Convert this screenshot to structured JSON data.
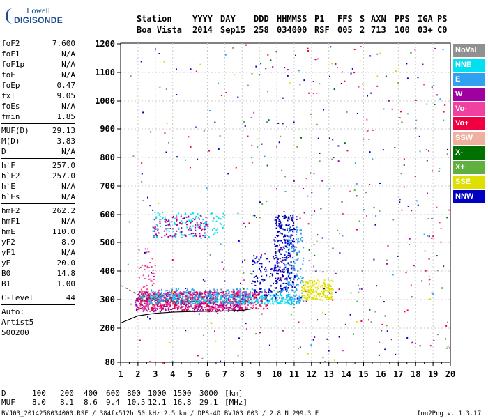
{
  "logo": {
    "line1": "Lowell",
    "line2": "DIGISONDE"
  },
  "header": {
    "labels": [
      "Station",
      "YYYY",
      "DAY",
      "DDD",
      "HHMMSS",
      "P1",
      "FFS",
      "S",
      "AXN",
      "PPS",
      "IGA",
      "PS"
    ],
    "values": [
      "Boa Vista",
      "2014",
      "Sep15",
      "258",
      "034000",
      "RSF",
      "005",
      "2",
      "713",
      "100",
      "03+",
      "C0"
    ]
  },
  "params": [
    [
      {
        "k": "foF2",
        "v": "7.600"
      },
      {
        "k": "foF1",
        "v": "N/A"
      },
      {
        "k": "foF1p",
        "v": "N/A"
      },
      {
        "k": "foE",
        "v": "N/A"
      },
      {
        "k": "foEp",
        "v": "0.47"
      },
      {
        "k": "fxI",
        "v": "9.05"
      },
      {
        "k": "foEs",
        "v": "N/A"
      },
      {
        "k": "fmin",
        "v": "1.85"
      }
    ],
    [
      {
        "k": "MUF(D)",
        "v": "29.13"
      },
      {
        "k": "M(D)",
        "v": "3.83"
      },
      {
        "k": "D",
        "v": "N/A"
      }
    ],
    [
      {
        "k": "h`F",
        "v": "257.0"
      },
      {
        "k": "h`F2",
        "v": "257.0"
      },
      {
        "k": "h`E",
        "v": "N/A"
      },
      {
        "k": "h`Es",
        "v": "N/A"
      }
    ],
    [
      {
        "k": "hmF2",
        "v": "262.2"
      },
      {
        "k": "hmF1",
        "v": "N/A"
      },
      {
        "k": "hmE",
        "v": "110.0"
      },
      {
        "k": "yF2",
        "v": "8.9"
      },
      {
        "k": "yF1",
        "v": "N/A"
      },
      {
        "k": "yE",
        "v": "20.0"
      },
      {
        "k": "B0",
        "v": "14.8"
      },
      {
        "k": "B1",
        "v": "1.00"
      }
    ],
    [
      {
        "k": "C-level",
        "v": "44"
      }
    ]
  ],
  "auto": [
    "Auto:",
    "Artist5",
    "500200"
  ],
  "legend": [
    {
      "label": "NoVal",
      "color": "#909090"
    },
    {
      "label": "NNE",
      "color": "#00e0f0"
    },
    {
      "label": "E",
      "color": "#30a0f0"
    },
    {
      "label": "W",
      "color": "#a000a0"
    },
    {
      "label": "Vo-",
      "color": "#f040a0"
    },
    {
      "label": "Vo+",
      "color": "#f00040"
    },
    {
      "label": "SSW",
      "color": "#f0b0a0"
    },
    {
      "label": "X-",
      "color": "#007000"
    },
    {
      "label": "X+",
      "color": "#60b040"
    },
    {
      "label": "SSE",
      "color": "#e0e000"
    },
    {
      "label": "NNW",
      "color": "#0000c0"
    }
  ],
  "footer": {
    "d_label": "D",
    "d_values": [
      "100",
      "200",
      "400",
      "600",
      "800",
      "1000",
      "1500",
      "3000"
    ],
    "d_unit": "[km]",
    "muf_label": "MUF",
    "muf_values": [
      "8.0",
      "8.1",
      "8.6",
      "9.4",
      "10.5",
      "12.1",
      "16.8",
      "29.1"
    ],
    "muf_unit": "[MHz]"
  },
  "bottom_left": "BVJ03_2014258034000.RSF / 384fx512h 50 kHz 2.5 km / DPS-4D BVJ03 003 / 2.8 N 299.3 E",
  "bottom_right": "Ion2Png v. 1.3.17",
  "chart_data": {
    "type": "scatter",
    "xlim": [
      1,
      20
    ],
    "ylim": [
      80,
      1200
    ],
    "x_ticks": [
      1,
      2,
      3,
      4,
      5,
      6,
      7,
      8,
      9,
      10,
      11,
      12,
      13,
      14,
      15,
      16,
      17,
      18,
      19,
      20
    ],
    "y_ticks": [
      80,
      200,
      300,
      400,
      500,
      600,
      700,
      800,
      900,
      1000,
      1100,
      1200
    ],
    "grid": true,
    "clusters": [
      {
        "color": "#a000a0",
        "x": [
          1.8,
          8.2
        ],
        "y": [
          260,
          330
        ],
        "n": 520
      },
      {
        "color": "#f040a0",
        "x": [
          2,
          9
        ],
        "y": [
          270,
          335
        ],
        "n": 300
      },
      {
        "color": "#f00040",
        "x": [
          2,
          9.5
        ],
        "y": [
          265,
          330
        ],
        "n": 260
      },
      {
        "color": "#00e0f0",
        "x": [
          2,
          11
        ],
        "y": [
          285,
          320
        ],
        "n": 280
      },
      {
        "color": "#30a0f0",
        "x": [
          2.5,
          11.5
        ],
        "y": [
          290,
          340
        ],
        "n": 220
      },
      {
        "color": "#0000c0",
        "x": [
          9.8,
          11
        ],
        "y": [
          330,
          600
        ],
        "n": 260
      },
      {
        "color": "#0000c0",
        "x": [
          8.5,
          10
        ],
        "y": [
          300,
          460
        ],
        "n": 90
      },
      {
        "color": "#30a0f0",
        "x": [
          10.5,
          11.5
        ],
        "y": [
          300,
          560
        ],
        "n": 120
      },
      {
        "color": "#e0e000",
        "x": [
          11.4,
          13.2
        ],
        "y": [
          300,
          370
        ],
        "n": 180
      },
      {
        "color": "#a000a0",
        "x": [
          2.8,
          6
        ],
        "y": [
          520,
          600
        ],
        "n": 120
      },
      {
        "color": "#00e0f0",
        "x": [
          2.8,
          7
        ],
        "y": [
          520,
          610
        ],
        "n": 110
      },
      {
        "color": "#f040a0",
        "x": [
          2,
          3
        ],
        "y": [
          260,
          480
        ],
        "n": 60
      },
      {
        "color": "#0000c0",
        "x": [
          2,
          20
        ],
        "y": [
          80,
          1200
        ],
        "n": 110
      },
      {
        "color": "#f00040",
        "x": [
          2,
          20
        ],
        "y": [
          80,
          1200
        ],
        "n": 70
      },
      {
        "color": "#007000",
        "x": [
          8,
          20
        ],
        "y": [
          80,
          1200
        ],
        "n": 40
      },
      {
        "color": "#60b040",
        "x": [
          8,
          20
        ],
        "y": [
          80,
          1100
        ],
        "n": 40
      },
      {
        "color": "#f040a0",
        "x": [
          8,
          20
        ],
        "y": [
          80,
          1200
        ],
        "n": 50
      },
      {
        "color": "#a000a0",
        "x": [
          8,
          20
        ],
        "y": [
          80,
          1200
        ],
        "n": 50
      },
      {
        "color": "#30a0f0",
        "x": [
          2,
          20
        ],
        "y": [
          80,
          1200
        ],
        "n": 50
      },
      {
        "color": "#909090",
        "x": [
          1,
          20
        ],
        "y": [
          80,
          1200
        ],
        "n": 40
      },
      {
        "color": "#e0e000",
        "x": [
          2,
          20
        ],
        "y": [
          80,
          1200
        ],
        "n": 25
      }
    ],
    "profile_lines": [
      {
        "points": [
          [
            1,
            218
          ],
          [
            2,
            243
          ],
          [
            3,
            252
          ],
          [
            4,
            256
          ],
          [
            5,
            258
          ],
          [
            6,
            259
          ],
          [
            7,
            260
          ],
          [
            8,
            262
          ],
          [
            8.6,
            268
          ]
        ],
        "color": "#000000",
        "style": "solid"
      },
      {
        "points": [
          [
            1,
            350
          ],
          [
            2,
            318
          ],
          [
            3,
            300
          ],
          [
            4,
            295
          ],
          [
            5,
            293
          ],
          [
            6,
            292
          ],
          [
            7,
            292
          ],
          [
            8,
            293
          ],
          [
            8.6,
            300
          ]
        ],
        "color": "#555555",
        "style": "dashed"
      }
    ]
  }
}
